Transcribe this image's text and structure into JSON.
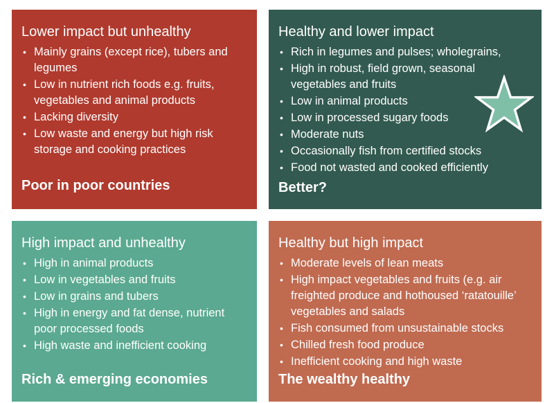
{
  "panels": {
    "top_left": {
      "title": "Lower impact but unhealthy",
      "items": [
        "Mainly grains (except rice), tubers and legumes",
        "Low in nutrient rich foods e.g. fruits, vegetables and animal products",
        "Lacking diversity",
        "Low waste and energy but high risk storage and cooking practices"
      ],
      "footer": "Poor in poor countries",
      "color": "#B03A2E"
    },
    "top_right": {
      "title": "Healthy and lower impact",
      "items": [
        "Rich in legumes and pulses; wholegrains,",
        "High in robust, field grown, seasonal vegetables and fruits",
        "Low in animal products",
        "Low in processed sugary foods",
        "Moderate nuts",
        "Occasionally fish from certified stocks",
        "Food not wasted and cooked efficiently"
      ],
      "footer": "Better?",
      "color": "#325A50",
      "icon": "star-icon",
      "icon_color": "#7FBFA8"
    },
    "bottom_left": {
      "title": "High impact and unhealthy",
      "items": [
        "High in animal products",
        "Low in vegetables and fruits",
        "Low in grains and tubers",
        "High in energy and fat dense, nutrient poor processed foods",
        "High waste and inefficient cooking"
      ],
      "footer": "Rich & emerging economies",
      "color": "#5BA990"
    },
    "bottom_right": {
      "title": "Healthy but high impact",
      "items": [
        "Moderate levels of lean meats",
        "High impact vegetables and fruits (e.g. air freighted produce and hothoused ‘ratatouille’ vegetables and salads",
        "Fish consumed from unsustainable stocks",
        "Chilled fresh food produce",
        "Inefficient cooking and high waste"
      ],
      "footer": "The wealthy healthy",
      "color": "#C06A50"
    }
  }
}
